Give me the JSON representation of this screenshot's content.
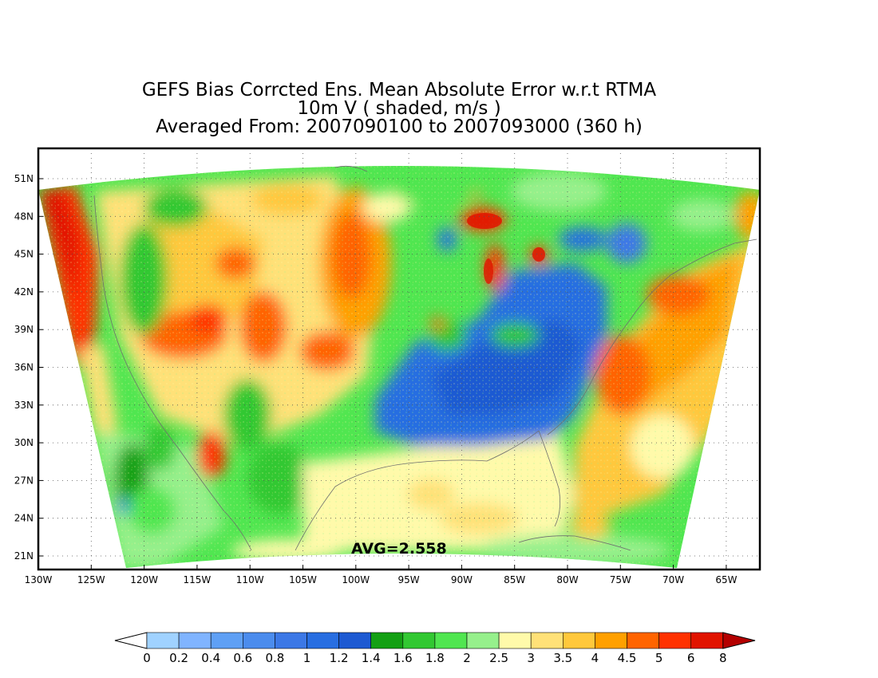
{
  "title": {
    "line1": "GEFS Bias Corrcted Ens. Mean Absolute Error w.r.t RTMA",
    "line2": "10m V ( shaded, m/s )",
    "line3": "Averaged From: 2007090100 to 2007093000 (360 h)"
  },
  "map": {
    "region": "Continental United States",
    "avg_label": "AVG=2.558",
    "lat_ticks": [
      "51N",
      "48N",
      "45N",
      "42N",
      "39N",
      "36N",
      "33N",
      "30N",
      "27N",
      "24N",
      "21N"
    ],
    "lon_ticks": [
      "130W",
      "125W",
      "120W",
      "115W",
      "110W",
      "105W",
      "100W",
      "95W",
      "90W",
      "85W",
      "80W",
      "75W",
      "70W",
      "65W"
    ],
    "grid": true,
    "ocean_color": "#ffffff"
  },
  "colorbar": {
    "labels": [
      "0",
      "0.2",
      "0.4",
      "0.6",
      "0.8",
      "1",
      "1.2",
      "1.4",
      "1.6",
      "1.8",
      "2",
      "2.5",
      "3",
      "3.5",
      "4",
      "4.5",
      "5",
      "6",
      "8"
    ],
    "colors": [
      "#a0d2ff",
      "#80b4ff",
      "#5fa0f5",
      "#4b8ced",
      "#3c78e6",
      "#286ee1",
      "#1e5ad2",
      "#14a014",
      "#32c832",
      "#50e650",
      "#96f08c",
      "#fffaaa",
      "#ffe178",
      "#ffc83c",
      "#ffa000",
      "#ff6400",
      "#ff3200",
      "#e11400",
      "#b40000"
    ],
    "under_color": "#ffffff",
    "over_color": "#b40000"
  }
}
